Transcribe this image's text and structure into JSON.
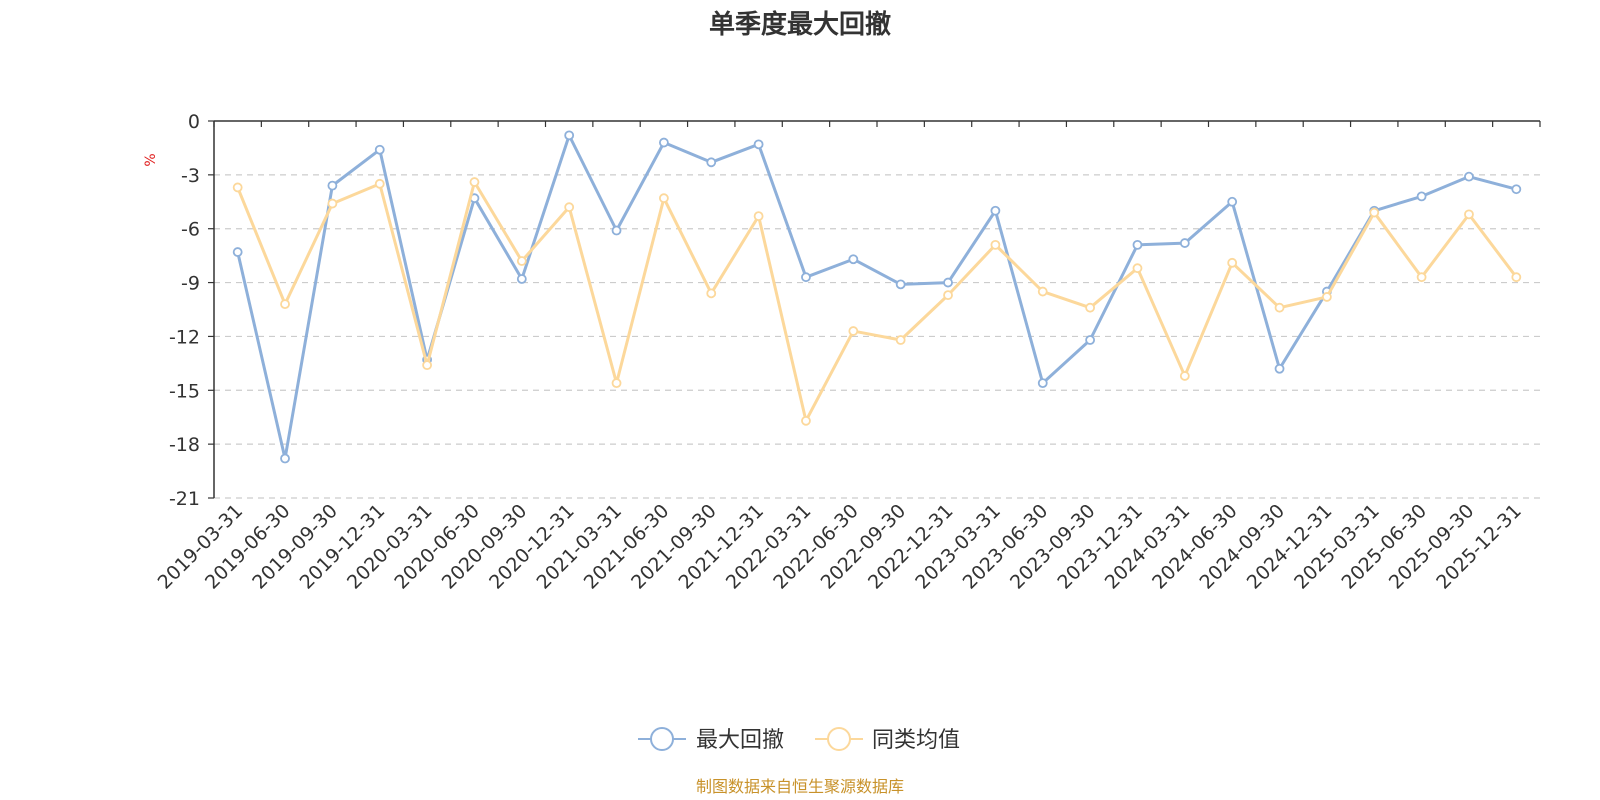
{
  "chart_data": {
    "type": "line",
    "title": "单季度最大回撤",
    "ylabel": "%",
    "ylim": [
      -21,
      0
    ],
    "yticks": [
      0,
      -3,
      -6,
      -9,
      -12,
      -15,
      -18,
      -21
    ],
    "grid": true,
    "legend_position": "bottom-center",
    "categories": [
      "2019-03-31",
      "2019-06-30",
      "2019-09-30",
      "2019-12-31",
      "2020-03-31",
      "2020-06-30",
      "2020-09-30",
      "2020-12-31",
      "2021-03-31",
      "2021-06-30",
      "2021-09-30",
      "2021-12-31",
      "2022-03-31",
      "2022-06-30",
      "2022-09-30",
      "2022-12-31",
      "2023-03-31",
      "2023-06-30",
      "2023-09-30",
      "2023-12-31",
      "2024-03-31",
      "2024-06-30",
      "2024-09-30",
      "2024-12-31",
      "2025-03-31",
      "2025-06-30",
      "2025-09-30",
      "2025-12-31"
    ],
    "series": [
      {
        "name": "最大回撤",
        "color": "#8eb0da",
        "values": [
          -7.3,
          -18.8,
          -3.6,
          -1.6,
          -13.3,
          -4.3,
          -8.8,
          -0.8,
          -6.1,
          -1.2,
          -2.3,
          -1.3,
          -8.7,
          -7.7,
          -9.1,
          -9.0,
          -5.0,
          -14.6,
          -12.2,
          -6.9,
          -6.8,
          -4.5,
          -13.8,
          -9.5,
          -5.0,
          -4.2,
          -3.1,
          -3.8
        ]
      },
      {
        "name": "同类均值",
        "color": "#fcd89b",
        "values": [
          -3.7,
          -10.2,
          -4.6,
          -3.5,
          -13.6,
          -3.4,
          -7.8,
          -4.8,
          -14.6,
          -4.3,
          -9.6,
          -5.3,
          -16.7,
          -11.7,
          -12.2,
          -9.7,
          -6.9,
          -9.5,
          -10.4,
          -8.2,
          -14.2,
          -7.9,
          -10.4,
          -9.8,
          -5.1,
          -8.7,
          -5.2,
          -8.7
        ]
      }
    ]
  },
  "source_text": "制图数据来自恒生聚源数据库",
  "colors": {
    "axis": "#333333",
    "grid": "#cccccc",
    "unit": "#e02020",
    "source": "#c8922a"
  }
}
